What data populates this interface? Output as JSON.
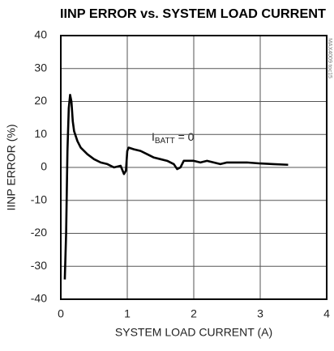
{
  "chart_data": {
    "type": "line",
    "title": "IINP ERROR vs. SYSTEM LOAD CURRENT",
    "x_label": "SYSTEM LOAD CURRENT (A)",
    "y_label": "IINP ERROR (%)",
    "annotation": {
      "main": "I",
      "sub": "BATT",
      "rest": " = 0"
    },
    "note": "MAX4009 toc15",
    "xlim": [
      0,
      4
    ],
    "xticks": [
      0,
      1,
      2,
      3,
      4
    ],
    "ylim": [
      -40,
      40
    ],
    "yticks": [
      -40,
      -30,
      -20,
      -10,
      0,
      10,
      20,
      30,
      40
    ],
    "grid": true,
    "series": [
      {
        "color": "#000000",
        "x": [
          0.06,
          0.08,
          0.1,
          0.12,
          0.14,
          0.16,
          0.18,
          0.2,
          0.25,
          0.3,
          0.4,
          0.5,
          0.6,
          0.7,
          0.8,
          0.9,
          0.95,
          0.98,
          1.0,
          1.02,
          1.1,
          1.2,
          1.3,
          1.4,
          1.5,
          1.6,
          1.7,
          1.75,
          1.8,
          1.85,
          1.9,
          2.0,
          2.1,
          2.2,
          2.3,
          2.4,
          2.5,
          2.6,
          2.8,
          3.0,
          3.2,
          3.42
        ],
        "values": [
          -34,
          -20,
          5,
          18,
          22,
          20,
          14,
          11,
          8,
          6,
          4,
          2.5,
          1.5,
          1,
          0,
          0.5,
          -2,
          -1,
          5,
          6,
          5.5,
          5,
          4,
          3,
          2.5,
          2,
          1,
          -0.5,
          0,
          2,
          2,
          2,
          1.5,
          2,
          1.5,
          1,
          1.5,
          1.5,
          1.5,
          1.2,
          1,
          0.8
        ]
      }
    ]
  }
}
